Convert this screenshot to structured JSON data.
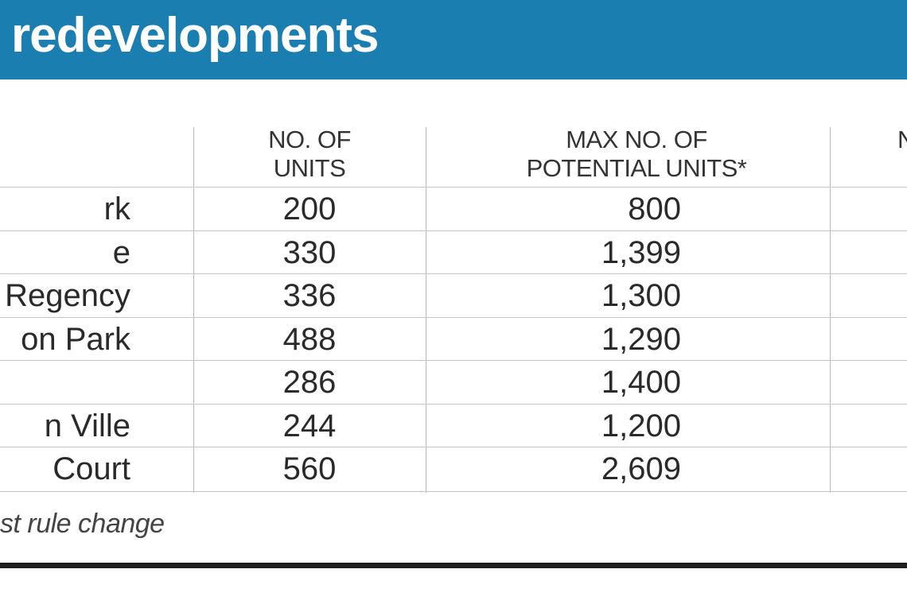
{
  "banner": {
    "title": "redevelopments",
    "color": "#1a7fb0"
  },
  "table": {
    "headers": {
      "units_line1": "NO. OF",
      "units_line2": "UNITS",
      "max_line1": "MAX NO. OF",
      "max_line2": "POTENTIAL UNITS*",
      "partial_col": "N"
    },
    "rows": [
      {
        "name": "rk",
        "units": "200",
        "max_units": "800"
      },
      {
        "name": "e",
        "units": "330",
        "max_units": "1,399"
      },
      {
        "name": "Regency",
        "units": "336",
        "max_units": "1,300"
      },
      {
        "name": "on Park",
        "units": "488",
        "max_units": "1,290"
      },
      {
        "name": "",
        "units": "286",
        "max_units": "1,400"
      },
      {
        "name": "n Ville",
        "units": "244",
        "max_units": "1,200"
      },
      {
        "name": "Court",
        "units": "560",
        "max_units": "2,609"
      }
    ]
  },
  "footnote": "st rule change"
}
